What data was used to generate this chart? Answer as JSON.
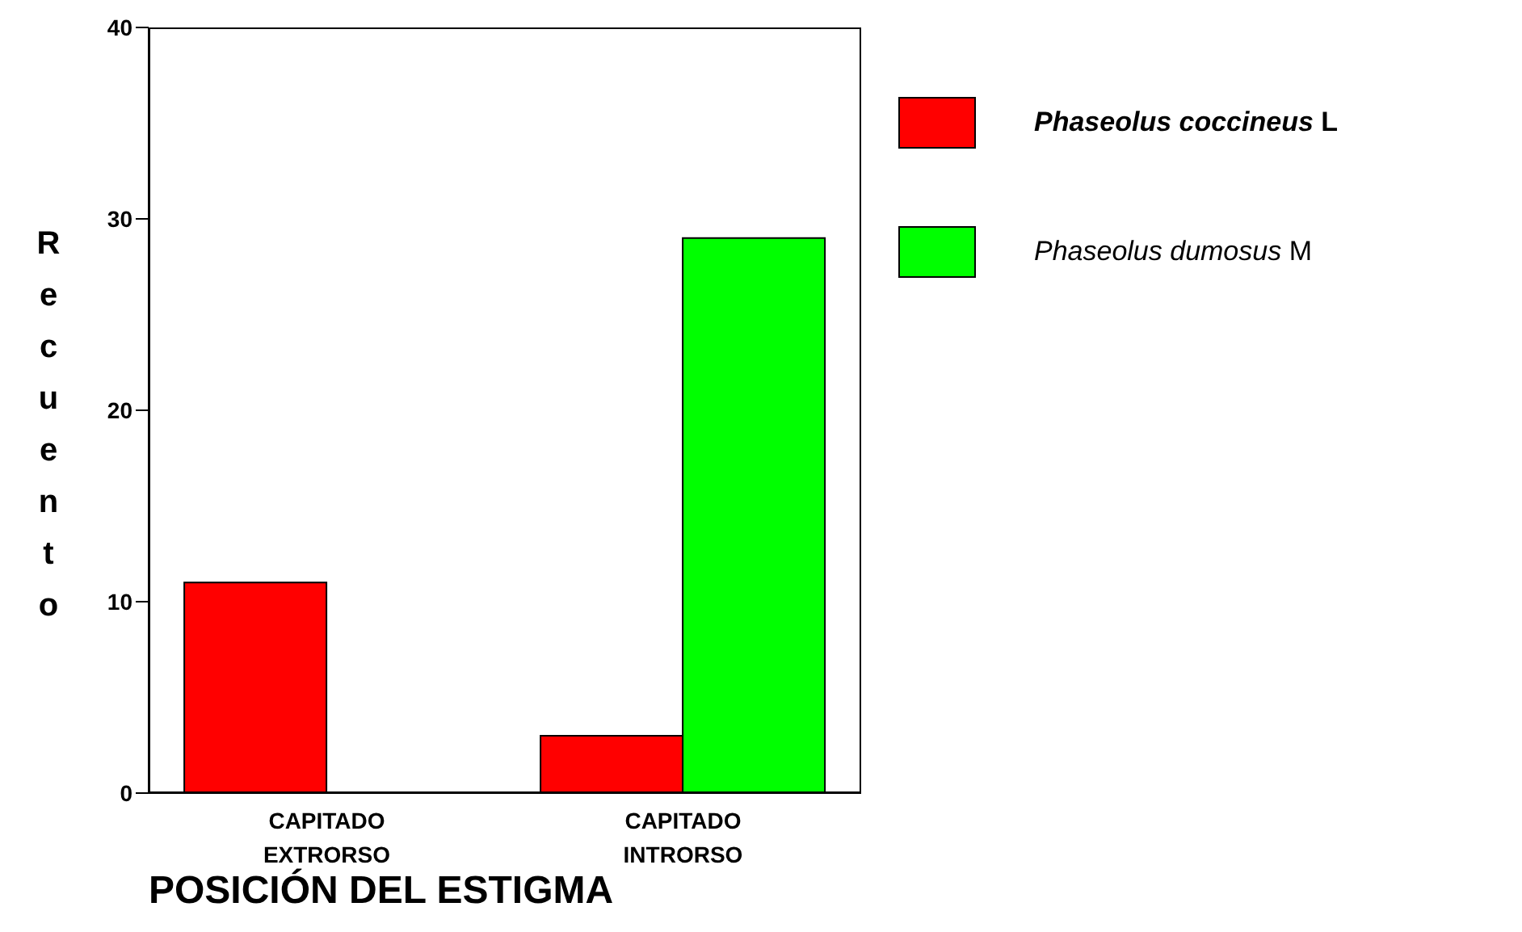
{
  "chart_data": {
    "type": "bar",
    "xlabel": "POSICIÓN DEL ESTIGMA",
    "ylabel": "Recuento",
    "categories": [
      "CAPITADO EXTRORSO",
      "CAPITADO INTRORSO"
    ],
    "series": [
      {
        "name": "Phaseolus coccineus L",
        "color": "#ff0000",
        "values": [
          11,
          3
        ]
      },
      {
        "name": "Phaseolus dumosus M",
        "color": "#00ff00",
        "values": [
          0,
          29
        ]
      }
    ],
    "ylim": [
      0,
      40
    ],
    "yticks": [
      0,
      10,
      20,
      30,
      40
    ],
    "legend": "right"
  }
}
